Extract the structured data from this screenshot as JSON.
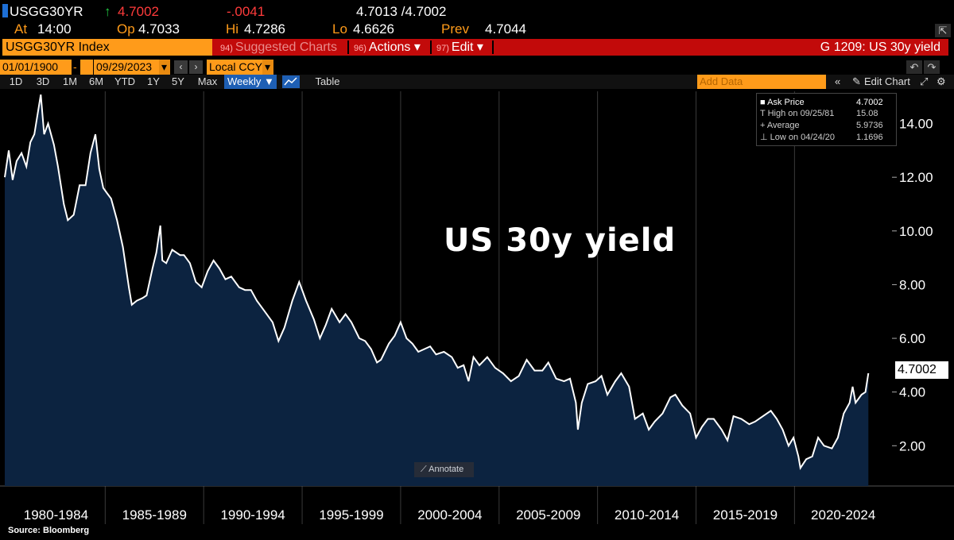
{
  "quote": {
    "ticker": "USGG30YR",
    "arrow": "↑",
    "last": "4.7002",
    "change": "-.0041",
    "bid_ask": "4.7013 /4.7002",
    "at_label": "At",
    "at_value": "14:00",
    "open_label": "Op",
    "open_value": "4.7033",
    "high_label": "Hi",
    "high_value": "4.7286",
    "low_label": "Lo",
    "low_value": "4.6626",
    "prev_label": "Prev",
    "prev_value": "4.7044"
  },
  "titlebar": {
    "security": "USGG30YR Index",
    "suggested_code": "94)",
    "suggested_label": "Suggested Charts",
    "actions_code": "96)",
    "actions_label": "Actions ▾",
    "edit_code": "97)",
    "edit_label": "Edit ▾",
    "chart_title": "G 1209: US 30y yield"
  },
  "daterow": {
    "start_date": "01/01/1900",
    "end_date": "09/29/2023",
    "currency": "Local CCY",
    "prev_icon": "‹",
    "next_icon": "›",
    "currency_dropdown_icon": "▾",
    "end_dropdown_icon": "▾",
    "undo_icon": "↶",
    "redo_icon": "↷",
    "popout_icon": "⇱"
  },
  "rangerow": {
    "ranges": [
      "1D",
      "3D",
      "1M",
      "6M",
      "YTD",
      "1Y",
      "5Y",
      "Max"
    ],
    "frequency": "Weekly ▼",
    "table_label": "Table",
    "add_data_placeholder": "Add Data",
    "collapse_icon": "«",
    "edit_chart_label": "Edit Chart",
    "edit_chart_icon": "✎",
    "gear_icon": "⚙"
  },
  "legend": {
    "rows": [
      {
        "icon": "■",
        "label": "Ask Price",
        "value": "4.7002"
      },
      {
        "icon": "T",
        "label": "High on 09/25/81",
        "value": "15.08"
      },
      {
        "icon": "+",
        "label": "Average",
        "value": "5.9736"
      },
      {
        "icon": "⊥",
        "label": "Low on 04/24/20",
        "value": "1.1696"
      }
    ]
  },
  "annotation_title": "US 30y yield",
  "annotate_button": "Annotate",
  "annotate_icon": "⟋",
  "last_value_label": "4.7002",
  "source": "Source:  Bloomberg",
  "colors": {
    "area_fill": "#0c2340",
    "line": "#ffffff",
    "grid": "#3a3a3a",
    "accent_orange": "#ff9b1a",
    "titlebar_red": "#c20a0a",
    "selected_blue": "#1e5fb4"
  },
  "chart_data": {
    "type": "area",
    "title": "US 30y yield",
    "series": [
      {
        "name": "Ask Price",
        "x": [
          1979.9,
          1980.1,
          1980.3,
          1980.5,
          1980.75,
          1981.0,
          1981.2,
          1981.4,
          1981.73,
          1981.9,
          1982.1,
          1982.4,
          1982.6,
          1982.9,
          1983.1,
          1983.4,
          1983.7,
          1984.0,
          1984.25,
          1984.5,
          1984.7,
          1984.9,
          1985.1,
          1985.3,
          1985.6,
          1985.9,
          1986.2,
          1986.35,
          1986.6,
          1986.9,
          1987.1,
          1987.4,
          1987.6,
          1987.8,
          1987.9,
          1988.1,
          1988.4,
          1988.8,
          1989.0,
          1989.3,
          1989.6,
          1989.9,
          1990.2,
          1990.5,
          1990.8,
          1991.1,
          1991.4,
          1991.8,
          1992.1,
          1992.4,
          1992.7,
          1993.1,
          1993.5,
          1993.8,
          1994.1,
          1994.5,
          1994.85,
          1995.2,
          1995.6,
          1995.9,
          1996.2,
          1996.5,
          1996.9,
          1997.2,
          1997.5,
          1997.9,
          1998.2,
          1998.5,
          1998.8,
          1999.0,
          1999.4,
          1999.7,
          2000.0,
          2000.3,
          2000.6,
          2000.9,
          2001.2,
          2001.5,
          2001.8,
          2002.2,
          2002.6,
          2002.9,
          2003.2,
          2003.45,
          2003.7,
          2004.0,
          2004.4,
          2004.8,
          2005.2,
          2005.6,
          2006.0,
          2006.4,
          2006.8,
          2007.2,
          2007.5,
          2007.9,
          2008.3,
          2008.6,
          2008.9,
          2009.0,
          2009.2,
          2009.5,
          2009.9,
          2010.2,
          2010.5,
          2010.9,
          2011.2,
          2011.6,
          2011.9,
          2012.3,
          2012.6,
          2012.9,
          2013.3,
          2013.7,
          2013.95,
          2014.3,
          2014.7,
          2015.0,
          2015.3,
          2015.6,
          2015.9,
          2016.3,
          2016.6,
          2016.9,
          2017.3,
          2017.7,
          2018.0,
          2018.4,
          2018.8,
          2019.1,
          2019.4,
          2019.7,
          2019.95,
          2020.2,
          2020.3,
          2020.6,
          2020.9,
          2021.2,
          2021.5,
          2021.9,
          2022.2,
          2022.5,
          2022.8,
          2022.95,
          2023.1,
          2023.4,
          2023.6,
          2023.75
        ],
        "y": [
          12.0,
          13.0,
          11.9,
          12.6,
          12.9,
          12.4,
          13.3,
          13.6,
          15.08,
          13.6,
          14.0,
          13.2,
          12.4,
          11.0,
          10.4,
          10.6,
          11.7,
          11.7,
          12.9,
          13.6,
          12.3,
          11.6,
          11.4,
          11.2,
          10.4,
          9.4,
          7.9,
          7.25,
          7.4,
          7.5,
          7.6,
          8.6,
          9.2,
          10.2,
          8.9,
          8.8,
          9.3,
          9.1,
          9.1,
          8.8,
          8.1,
          7.9,
          8.5,
          8.9,
          8.6,
          8.2,
          8.3,
          7.9,
          7.8,
          7.8,
          7.4,
          7.0,
          6.6,
          5.9,
          6.4,
          7.4,
          8.1,
          7.4,
          6.7,
          6.0,
          6.5,
          7.1,
          6.6,
          6.9,
          6.6,
          6.0,
          5.9,
          5.6,
          5.1,
          5.2,
          5.8,
          6.1,
          6.6,
          6.0,
          5.8,
          5.5,
          5.6,
          5.7,
          5.4,
          5.5,
          5.3,
          4.9,
          5.0,
          4.4,
          5.3,
          5.0,
          5.3,
          4.9,
          4.7,
          4.4,
          4.6,
          5.2,
          4.8,
          4.8,
          5.1,
          4.5,
          4.4,
          4.5,
          3.6,
          2.6,
          3.6,
          4.3,
          4.4,
          4.6,
          3.9,
          4.4,
          4.7,
          4.2,
          3.0,
          3.2,
          2.6,
          2.9,
          3.2,
          3.8,
          3.9,
          3.5,
          3.2,
          2.3,
          2.7,
          3.0,
          3.0,
          2.6,
          2.2,
          3.1,
          3.0,
          2.8,
          2.9,
          3.1,
          3.3,
          3.0,
          2.6,
          2.0,
          2.3,
          1.6,
          1.17,
          1.5,
          1.6,
          2.3,
          2.0,
          1.9,
          2.3,
          3.2,
          3.6,
          4.2,
          3.6,
          3.9,
          4.0,
          4.7002
        ]
      }
    ],
    "y_ticks": [
      "2.00",
      "4.00",
      "6.00",
      "8.00",
      "10.00",
      "12.00",
      "14.00"
    ],
    "x_tick_labels": [
      "1980-1984",
      "1985-1989",
      "1990-1994",
      "1995-1999",
      "2000-2004",
      "2005-2009",
      "2010-2014",
      "2015-2019",
      "2020-2024"
    ],
    "ylim": [
      0.5,
      15.2
    ],
    "xlim": [
      1979.9,
      2024.95
    ],
    "grid": "vertical",
    "y_axis_side": "right",
    "legend_position": "top-right"
  }
}
